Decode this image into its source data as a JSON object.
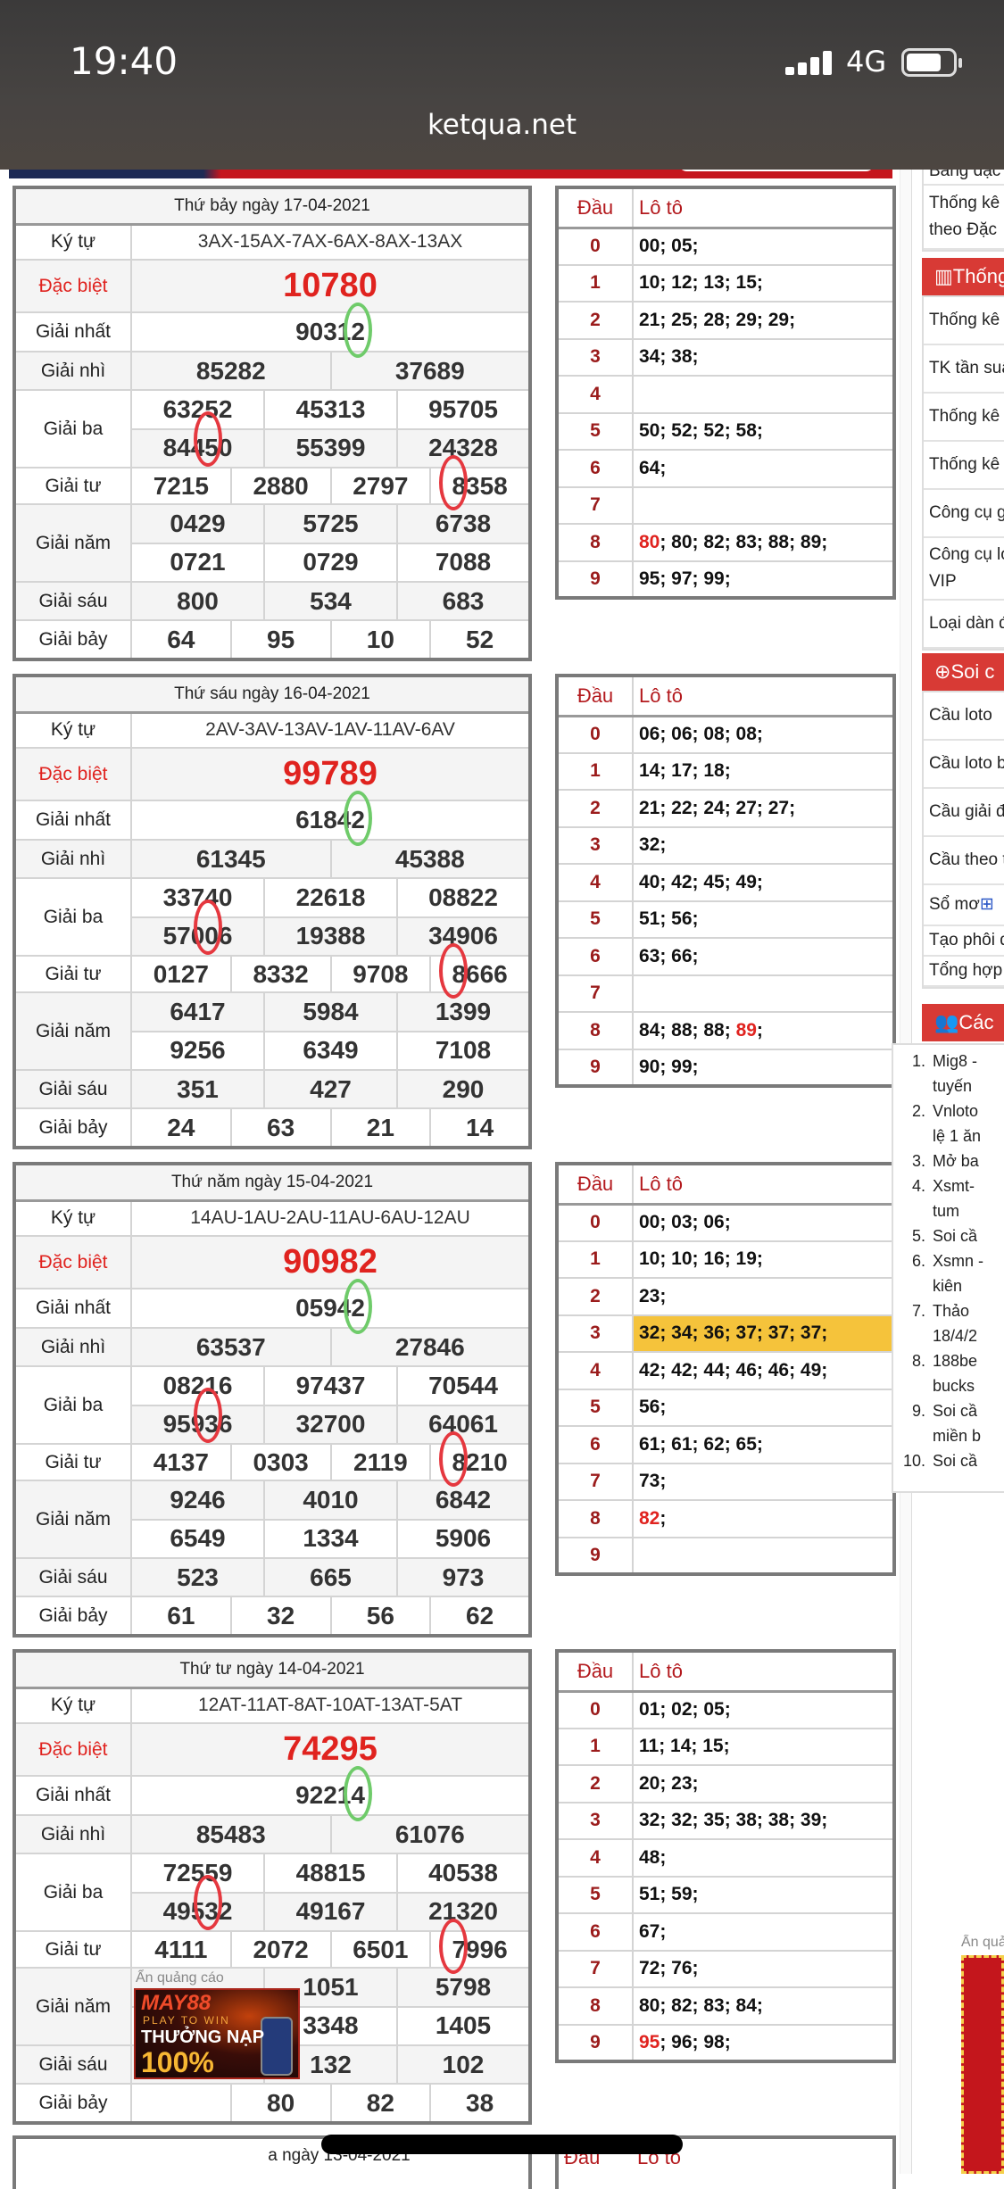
{
  "status_bar": {
    "time": "19:40",
    "network": "4G",
    "battery_level": 0.65,
    "url": "ketqua.net"
  },
  "colors": {
    "accent_red": "#e0231f",
    "sidebar_header": "#d83a35",
    "highlight": "#f5c33b",
    "annotation_red": "#e5383f",
    "annotation_green": "#6fcb6a"
  },
  "labels": {
    "ky_tu": "Ký tự",
    "dac_biet": "Đặc biệt",
    "giai_nhat": "Giải nhất",
    "giai_nhi": "Giải nhì",
    "giai_ba": "Giải ba",
    "giai_tu": "Giải tư",
    "giai_nam": "Giải năm",
    "giai_sau": "Giải sáu",
    "giai_bay": "Giải bảy",
    "dau": "Đầu",
    "loto": "Lô tô"
  },
  "draws": [
    {
      "date": "Thứ bảy ngày 17-04-2021",
      "ky_tu": "3AX-15AX-7AX-6AX-8AX-13AX",
      "dac_biet": "10780",
      "giai_nhat": [
        "90312"
      ],
      "giai_nhi": [
        "85282",
        "37689"
      ],
      "giai_ba": [
        "63252",
        "45313",
        "95705",
        "84450",
        "55399",
        "24328"
      ],
      "giai_tu": [
        "7215",
        "2880",
        "2797",
        "8358"
      ],
      "giai_nam": [
        "0429",
        "5725",
        "6738",
        "0721",
        "0729",
        "7088"
      ],
      "giai_sau": [
        "800",
        "534",
        "683"
      ],
      "giai_bay": [
        "64",
        "95",
        "10",
        "52"
      ],
      "loto": [
        {
          "d": "0",
          "v": "00; 05;"
        },
        {
          "d": "1",
          "v": "10; 12; 13; 15;"
        },
        {
          "d": "2",
          "v": "21; 25; 28; 29; 29;"
        },
        {
          "d": "3",
          "v": "34; 38;"
        },
        {
          "d": "4",
          "v": ""
        },
        {
          "d": "5",
          "v": "50; 52; 52; 58;"
        },
        {
          "d": "6",
          "v": "64;"
        },
        {
          "d": "7",
          "v": ""
        },
        {
          "d": "8",
          "red": "80",
          "v": "; 80; 82; 83; 88; 89;"
        },
        {
          "d": "9",
          "v": "95; 97; 99;"
        }
      ]
    },
    {
      "date": "Thứ sáu ngày 16-04-2021",
      "ky_tu": "2AV-3AV-13AV-1AV-11AV-6AV",
      "dac_biet": "99789",
      "giai_nhat": [
        "61842"
      ],
      "giai_nhi": [
        "61345",
        "45388"
      ],
      "giai_ba": [
        "33740",
        "22618",
        "08822",
        "57006",
        "19388",
        "34906"
      ],
      "giai_tu": [
        "0127",
        "8332",
        "9708",
        "8666"
      ],
      "giai_nam": [
        "6417",
        "5984",
        "1399",
        "9256",
        "6349",
        "7108"
      ],
      "giai_sau": [
        "351",
        "427",
        "290"
      ],
      "giai_bay": [
        "24",
        "63",
        "21",
        "14"
      ],
      "loto": [
        {
          "d": "0",
          "v": "06; 06; 08; 08;"
        },
        {
          "d": "1",
          "v": "14; 17; 18;"
        },
        {
          "d": "2",
          "v": "21; 22; 24; 27; 27;"
        },
        {
          "d": "3",
          "v": "32;"
        },
        {
          "d": "4",
          "v": "40; 42; 45; 49;"
        },
        {
          "d": "5",
          "v": "51; 56;"
        },
        {
          "d": "6",
          "v": "63; 66;"
        },
        {
          "d": "7",
          "v": ""
        },
        {
          "d": "8",
          "v": "84; 88; 88; ",
          "red_after": "89",
          "tail": ";"
        },
        {
          "d": "9",
          "v": "90; 99;"
        }
      ]
    },
    {
      "date": "Thứ năm ngày 15-04-2021",
      "ky_tu": "14AU-1AU-2AU-11AU-6AU-12AU",
      "dac_biet": "90982",
      "giai_nhat": [
        "05942"
      ],
      "giai_nhi": [
        "63537",
        "27846"
      ],
      "giai_ba": [
        "08216",
        "97437",
        "70544",
        "95936",
        "32700",
        "64061"
      ],
      "giai_tu": [
        "4137",
        "0303",
        "2119",
        "8210"
      ],
      "giai_nam": [
        "9246",
        "4010",
        "6842",
        "6549",
        "1334",
        "5906"
      ],
      "giai_sau": [
        "523",
        "665",
        "973"
      ],
      "giai_bay": [
        "61",
        "32",
        "56",
        "62"
      ],
      "loto": [
        {
          "d": "0",
          "v": "00; 03; 06;"
        },
        {
          "d": "1",
          "v": "10; 10; 16; 19;"
        },
        {
          "d": "2",
          "v": "23;"
        },
        {
          "d": "3",
          "v": "32; 34; 36; 37; 37; 37;",
          "highlight": true
        },
        {
          "d": "4",
          "v": "42; 42; 44; 46; 46; 49;"
        },
        {
          "d": "5",
          "v": "56;"
        },
        {
          "d": "6",
          "v": "61; 61; 62; 65;"
        },
        {
          "d": "7",
          "v": "73;"
        },
        {
          "d": "8",
          "red": "82",
          "v": ";"
        },
        {
          "d": "9",
          "v": ""
        }
      ]
    },
    {
      "date": "Thứ tư ngày 14-04-2021",
      "ky_tu": "12AT-11AT-8AT-10AT-13AT-5AT",
      "dac_biet": "74295",
      "giai_nhat": [
        "92214"
      ],
      "giai_nhi": [
        "85483",
        "61076"
      ],
      "giai_ba": [
        "72559",
        "48815",
        "40538",
        "49532",
        "49167",
        "21320"
      ],
      "giai_tu": [
        "4111",
        "2072",
        "6501",
        "7996"
      ],
      "giai_nam": [
        "",
        "1051",
        "5798",
        "",
        "3348",
        "1405"
      ],
      "giai_sau": [
        "",
        "132",
        "102"
      ],
      "giai_bay": [
        "",
        "80",
        "82",
        "38"
      ],
      "loto": [
        {
          "d": "0",
          "v": "01; 02; 05;"
        },
        {
          "d": "1",
          "v": "11; 14; 15;"
        },
        {
          "d": "2",
          "v": "20; 23;"
        },
        {
          "d": "3",
          "v": "32; 32; 35; 38; 38; 39;"
        },
        {
          "d": "4",
          "v": "48;"
        },
        {
          "d": "5",
          "v": "51; 59;"
        },
        {
          "d": "6",
          "v": "67;"
        },
        {
          "d": "7",
          "v": "72; 76;"
        },
        {
          "d": "8",
          "v": "80; 82; 83; 84;"
        },
        {
          "d": "9",
          "red": "95",
          "v": "; 96; 98;"
        }
      ]
    }
  ],
  "partial_draw": {
    "date": "a ngày 13-04-2021"
  },
  "sidebar": {
    "top_items": [
      "Bảng đặc",
      "Thống kê theo Đặc"
    ],
    "sections": [
      {
        "title": "Thống",
        "icon": "bar-chart-icon",
        "items": [
          "Thống kê",
          "TK tần suấ",
          "Thống kê",
          "Thống kê",
          "Công cụ g",
          "Công cụ lo VIP",
          "Loại dàn đ"
        ]
      },
      {
        "title": "Soi c",
        "icon": "search-plus-icon",
        "items": [
          "Cầu loto",
          "Cầu loto b",
          "Cầu giải đ",
          "Cầu theo t",
          "Sổ mơ",
          "Tạo phôi d",
          "Tổng hợp"
        ]
      },
      {
        "title": "Các",
        "icon": "users-icon",
        "list": [
          {
            "n": "1.",
            "t": "Mig8 - tuyến"
          },
          {
            "n": "2.",
            "t": "Vnloto lệ 1 ăn"
          },
          {
            "n": "3.",
            "t": "Mở ba"
          },
          {
            "n": "4.",
            "t": "Xsmt- tum"
          },
          {
            "n": "5.",
            "t": "Soi cầ"
          },
          {
            "n": "6.",
            "t": "Xsmn - kiên"
          },
          {
            "n": "7.",
            "t": "Thảo 18/4/2"
          },
          {
            "n": "8.",
            "t": "188be bucks"
          },
          {
            "n": "9.",
            "t": "Soi cầ miền b"
          },
          {
            "n": "10.",
            "t": "Soi cầ"
          }
        ]
      }
    ]
  },
  "ads": {
    "hide_label": "Ẩn quảng cáo",
    "left_ad": {
      "brand": "MAY88",
      "tagline": "PLAY TO WIN",
      "bonus": "THƯỞNG NẠP",
      "percent": "100%"
    }
  }
}
